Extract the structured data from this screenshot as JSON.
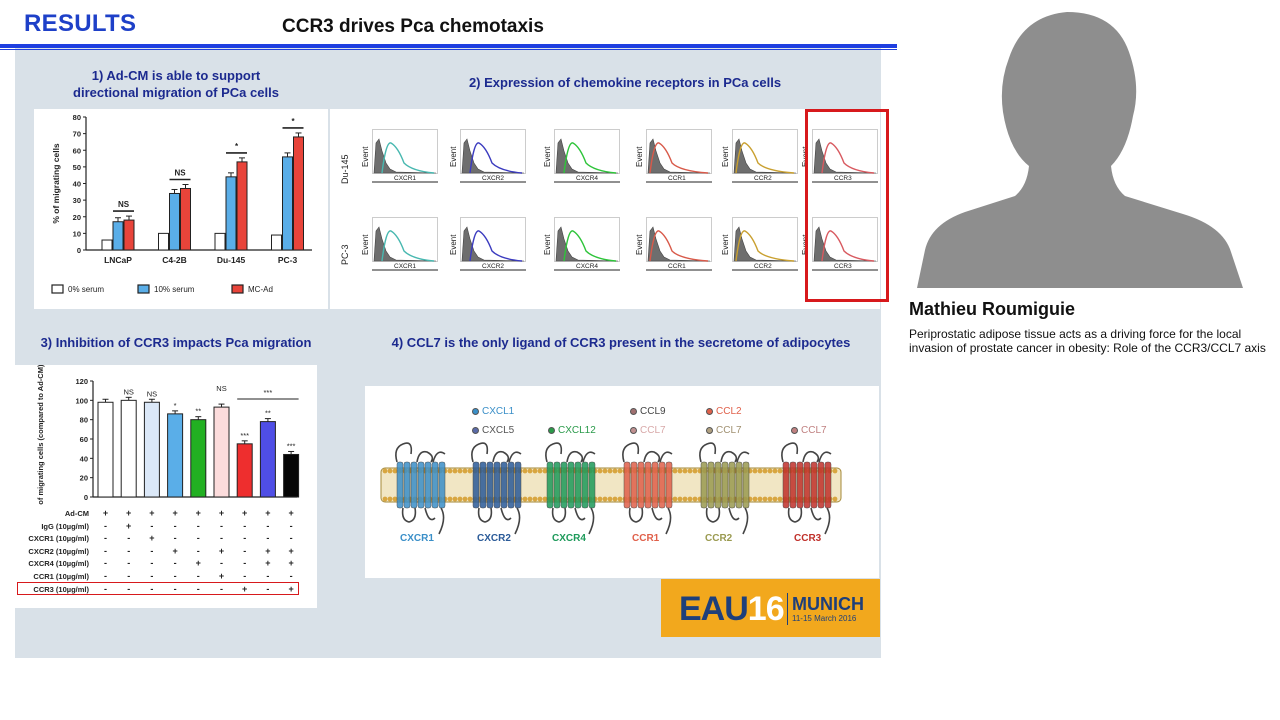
{
  "slide": {
    "results_label": "RESULTS",
    "title": "CCR3 drives Pca chemotaxis",
    "section1_title": "1) Ad-CM is able to support directional migration of PCa cells",
    "section2_title": "2) Expression of chemokine receptors in PCa cells",
    "section3_title": "3) Inhibition of CCR3 impacts Pca migration",
    "section4_title": "4) CCL7 is the only ligand of CCR3 present in the secretome of adipocytes"
  },
  "chart_data": [
    {
      "type": "bar",
      "ylabel": "% of migrating cells",
      "ylim": [
        0,
        80
      ],
      "yticks": [
        "0",
        "10",
        "20",
        "30",
        "40",
        "50",
        "60",
        "70",
        "80"
      ],
      "categories": [
        "LNCaP",
        "C4-2B",
        "Du-145",
        "PC-3"
      ],
      "series": [
        {
          "name": "0% serum",
          "color": "#ffffff",
          "values": [
            6,
            10,
            10,
            9
          ]
        },
        {
          "name": "10% serum",
          "color": "#5aaee8",
          "values": [
            17,
            34,
            44,
            56
          ]
        },
        {
          "name": "MC-Ad",
          "color": "#e8443a",
          "values": [
            18,
            37,
            53,
            68
          ]
        }
      ],
      "significance": [
        "NS",
        "NS",
        "*",
        "*"
      ],
      "legend": "bottom"
    },
    {
      "type": "bar",
      "ylabel": "% of migrating cells (compared to Ad-CM)",
      "ylim": [
        0,
        120
      ],
      "yticks": [
        "0",
        "20",
        "40",
        "60",
        "80",
        "100",
        "120"
      ],
      "values": [
        98,
        100,
        98,
        86,
        80,
        93,
        55,
        78,
        44
      ],
      "colors": [
        "#ffffff",
        "#ffffff",
        "#dbe8f8",
        "#5aaee8",
        "#22b022",
        "#fcdcdc",
        "#ee2e2e",
        "#4f4ee6",
        "#050505"
      ],
      "significance": [
        "",
        "NS",
        "NS",
        "*",
        "**",
        "NS",
        "***",
        "**",
        "***"
      ],
      "bracket_label": "***",
      "table": {
        "rows": [
          {
            "label": "Ad-CM",
            "cells": [
              "+",
              "+",
              "+",
              "+",
              "+",
              "+",
              "+",
              "+",
              "+"
            ]
          },
          {
            "label": "IgG (10µg/ml)",
            "cells": [
              "-",
              "+",
              "-",
              "-",
              "-",
              "-",
              "-",
              "-",
              "-"
            ]
          },
          {
            "label": "CXCR1 (10µg/ml)",
            "cells": [
              "-",
              "-",
              "+",
              "-",
              "-",
              "-",
              "-",
              "-",
              "-"
            ]
          },
          {
            "label": "CXCR2 (10µg/ml)",
            "cells": [
              "-",
              "-",
              "-",
              "+",
              "-",
              "+",
              "-",
              "+",
              "+"
            ]
          },
          {
            "label": "CXCR4 (10µg/ml)",
            "cells": [
              "-",
              "-",
              "-",
              "-",
              "+",
              "-",
              "-",
              "+",
              "+"
            ]
          },
          {
            "label": "CCR1 (10µg/ml)",
            "cells": [
              "-",
              "-",
              "-",
              "-",
              "-",
              "+",
              "-",
              "-",
              "-"
            ]
          },
          {
            "label": "CCR3 (10µg/ml)",
            "cells": [
              "-",
              "-",
              "-",
              "-",
              "-",
              "-",
              "+",
              "-",
              "+"
            ]
          }
        ]
      }
    }
  ],
  "flow": {
    "rows": [
      "Du-145",
      "PC-3"
    ],
    "event_label": "Event",
    "markers": [
      {
        "name": "CXCR1",
        "color": "#48b8b0"
      },
      {
        "name": "CXCR2",
        "color": "#3b3bbf"
      },
      {
        "name": "CXCR4",
        "color": "#2ec43a"
      },
      {
        "name": "CCR1",
        "color": "#d85a4a"
      },
      {
        "name": "CCR2",
        "color": "#c9a030"
      },
      {
        "name": "CCR3",
        "color": "#d85a60"
      }
    ]
  },
  "membrane": {
    "receptors": [
      {
        "name": "CXCR1",
        "color": "#3a8fc8"
      },
      {
        "name": "CXCR2",
        "color": "#2a5a98"
      },
      {
        "name": "CXCR4",
        "color": "#1d9a5a"
      },
      {
        "name": "CCR1",
        "color": "#e0604a"
      },
      {
        "name": "CCR2",
        "color": "#9a9a50"
      },
      {
        "name": "CCR3",
        "color": "#c0302a"
      }
    ],
    "ligands": [
      {
        "name": "CXCL1",
        "color": "#3a8fc8",
        "text_color": "#3a8fc8",
        "dot": "#3a8fc8"
      },
      {
        "name": "CXCL5",
        "color": "#555",
        "text_color": "#555",
        "dot": "#5a6aa8"
      },
      {
        "name": "CXCL12",
        "color": "#2a9a4a",
        "text_color": "#2a9a4a",
        "dot": "#2a9a4a"
      },
      {
        "name": "CCL9",
        "color": "#444",
        "text_color": "#444",
        "dot": "#a07070"
      },
      {
        "name": "CCL2",
        "color": "#e0604a",
        "text_color": "#e0604a",
        "dot": "#e0604a"
      },
      {
        "name": "CCL7",
        "color": "#d0a0a0",
        "text_color": "#d8a8a8",
        "dot": "#c09090"
      },
      {
        "name": "CCL7",
        "color": "#a09070",
        "text_color": "#a09070",
        "dot": "#b0a080"
      },
      {
        "name": "CCL7",
        "color": "#c08080",
        "text_color": "#c08080",
        "dot": "#c08080"
      }
    ]
  },
  "eau": {
    "brand": "EAU",
    "edition": "16",
    "city": "MUNICH",
    "dates": "11-15 March 2016"
  },
  "speaker": {
    "name": "Mathieu Roumiguie",
    "description": "Periprostatic adipose tissue acts as a driving force for the local invasion of prostate cancer in obesity: Role of the CCR3/CCL7 axis"
  }
}
